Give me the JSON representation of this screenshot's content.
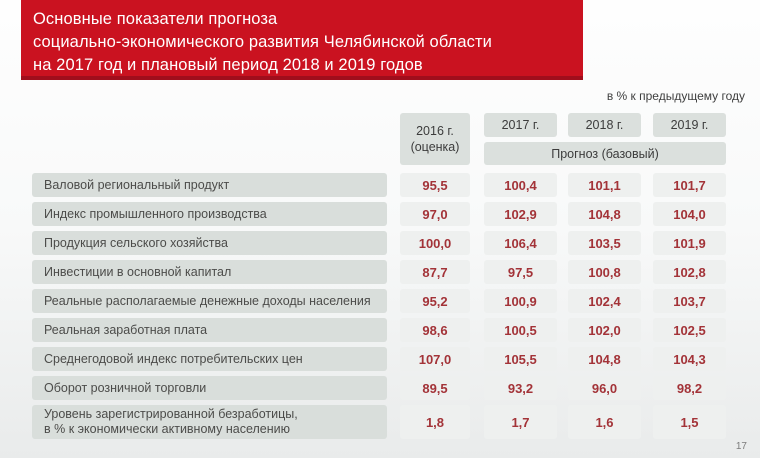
{
  "slide": {
    "title": "Основные показатели прогноза\nсоциально-экономического развития Челябинской области\nна 2017 год и плановый период 2018 и 2019 годов",
    "unit_note": "в % к предыдущему году",
    "page_number": "17"
  },
  "colors": {
    "banner_red": "#ca1220",
    "banner_red_dark": "#a00e1c",
    "label_cell_bg": "#d9dedb",
    "header_cell_bg": "#dbe0dd",
    "value_cell_bg": "#eef0ef",
    "value_text_red": "#a33338",
    "label_text": "#4c4c4a"
  },
  "table": {
    "col_headers": {
      "y2016": "2016 г.\n(оценка)",
      "y2017": "2017 г.",
      "y2018": "2018 г.",
      "y2019": "2019 г."
    },
    "forecast_label": "Прогноз (базовый)",
    "rows": [
      {
        "label": "Валовой региональный продукт",
        "values": [
          "95,5",
          "100,4",
          "101,1",
          "101,7"
        ]
      },
      {
        "label": "Индекс промышленного производства",
        "values": [
          "97,0",
          "102,9",
          "104,8",
          "104,0"
        ]
      },
      {
        "label": "Продукция сельского хозяйства",
        "values": [
          "100,0",
          "106,4",
          "103,5",
          "101,9"
        ]
      },
      {
        "label": "Инвестиции в основной капитал",
        "values": [
          "87,7",
          "97,5",
          "100,8",
          "102,8"
        ]
      },
      {
        "label": "Реальные располагаемые денежные доходы населения",
        "values": [
          "95,2",
          "100,9",
          "102,4",
          "103,7"
        ]
      },
      {
        "label": "Реальная заработная плата",
        "values": [
          "98,6",
          "100,5",
          "102,0",
          "102,5"
        ]
      },
      {
        "label": "Среднегодовой индекс потребительских цен",
        "values": [
          "107,0",
          "105,5",
          "104,8",
          "104,3"
        ]
      },
      {
        "label": "Оборот розничной торговли",
        "values": [
          "89,5",
          "93,2",
          "96,0",
          "98,2"
        ]
      },
      {
        "label": "Уровень зарегистрированной безработицы,\nв % к экономически активному населению",
        "values": [
          "1,8",
          "1,7",
          "1,6",
          "1,5"
        ]
      }
    ]
  },
  "chart_data": {
    "type": "table",
    "title": "Основные показатели прогноза социально-экономического развития Челябинской области на 2017 год и плановый период 2018 и 2019 годов",
    "unit": "в % к предыдущему году",
    "columns": [
      "2016 г. (оценка)",
      "2017 г.",
      "2018 г.",
      "2019 г."
    ],
    "column_group_note": "Прогноз (базовый) охватывает 2017, 2018 и 2019 гг.",
    "rows": [
      {
        "indicator": "Валовой региональный продукт",
        "values": [
          95.5,
          100.4,
          101.1,
          101.7
        ]
      },
      {
        "indicator": "Индекс промышленного производства",
        "values": [
          97.0,
          102.9,
          104.8,
          104.0
        ]
      },
      {
        "indicator": "Продукция сельского хозяйства",
        "values": [
          100.0,
          106.4,
          103.5,
          101.9
        ]
      },
      {
        "indicator": "Инвестиции в основной капитал",
        "values": [
          87.7,
          97.5,
          100.8,
          102.8
        ]
      },
      {
        "indicator": "Реальные располагаемые денежные доходы населения",
        "values": [
          95.2,
          100.9,
          102.4,
          103.7
        ]
      },
      {
        "indicator": "Реальная заработная плата",
        "values": [
          98.6,
          100.5,
          102.0,
          102.5
        ]
      },
      {
        "indicator": "Среднегодовой индекс потребительских цен",
        "values": [
          107.0,
          105.5,
          104.8,
          104.3
        ]
      },
      {
        "indicator": "Оборот розничной торговли",
        "values": [
          89.5,
          93.2,
          96.0,
          98.2
        ]
      },
      {
        "indicator": "Уровень зарегистрированной безработицы, в % к экономически активному населению",
        "values": [
          1.8,
          1.7,
          1.6,
          1.5
        ]
      }
    ],
    "page_number": 17
  }
}
